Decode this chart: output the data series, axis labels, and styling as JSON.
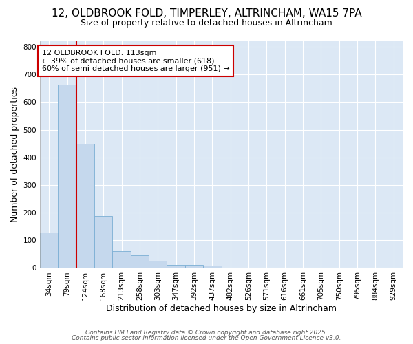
{
  "title_line1": "12, OLDBROOK FOLD, TIMPERLEY, ALTRINCHAM, WA15 7PA",
  "title_line2": "Size of property relative to detached houses in Altrincham",
  "xlabel": "Distribution of detached houses by size in Altrincham",
  "ylabel": "Number of detached properties",
  "categories": [
    "34sqm",
    "79sqm",
    "124sqm",
    "168sqm",
    "213sqm",
    "258sqm",
    "303sqm",
    "347sqm",
    "392sqm",
    "437sqm",
    "482sqm",
    "526sqm",
    "571sqm",
    "616sqm",
    "661sqm",
    "705sqm",
    "750sqm",
    "795sqm",
    "884sqm",
    "929sqm"
  ],
  "values": [
    128,
    663,
    450,
    188,
    62,
    47,
    27,
    12,
    12,
    9,
    0,
    0,
    0,
    0,
    0,
    0,
    0,
    0,
    0,
    0
  ],
  "bar_color": "#c5d8ed",
  "bar_edge_color": "#7bafd4",
  "vline_color": "#cc0000",
  "annotation_text": "12 OLDBROOK FOLD: 113sqm\n← 39% of detached houses are smaller (618)\n60% of semi-detached houses are larger (951) →",
  "annotation_box_facecolor": "#ffffff",
  "annotation_box_edgecolor": "#cc0000",
  "ylim": [
    0,
    820
  ],
  "yticks": [
    0,
    100,
    200,
    300,
    400,
    500,
    600,
    700,
    800
  ],
  "footer_line1": "Contains HM Land Registry data © Crown copyright and database right 2025.",
  "footer_line2": "Contains public sector information licensed under the Open Government Licence v3.0.",
  "fig_bg_color": "#ffffff",
  "plot_bg_color": "#dce8f5",
  "grid_color": "#ffffff",
  "title1_fontsize": 11,
  "title2_fontsize": 9,
  "axis_label_fontsize": 9,
  "tick_fontsize": 7.5,
  "annotation_fontsize": 8,
  "footer_fontsize": 6.5
}
